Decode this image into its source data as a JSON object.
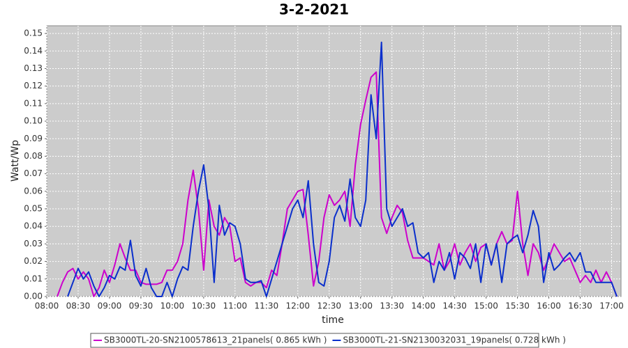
{
  "chart_data": {
    "type": "line",
    "title": "3-2-2021",
    "x_label": "time",
    "y_label": "Watt/Wp",
    "x": [
      "08:10",
      "08:15",
      "08:20",
      "08:25",
      "08:30",
      "08:35",
      "08:40",
      "08:45",
      "08:50",
      "08:55",
      "09:00",
      "09:05",
      "09:10",
      "09:15",
      "09:20",
      "09:25",
      "09:30",
      "09:35",
      "09:40",
      "09:45",
      "09:50",
      "09:55",
      "10:00",
      "10:05",
      "10:10",
      "10:15",
      "10:20",
      "10:25",
      "10:30",
      "10:35",
      "10:40",
      "10:45",
      "10:50",
      "10:55",
      "11:00",
      "11:05",
      "11:10",
      "11:15",
      "11:20",
      "11:25",
      "11:30",
      "11:35",
      "11:40",
      "11:45",
      "11:50",
      "11:55",
      "12:00",
      "12:05",
      "12:10",
      "12:15",
      "12:20",
      "12:25",
      "12:30",
      "12:35",
      "12:40",
      "12:45",
      "12:50",
      "12:55",
      "13:00",
      "13:05",
      "13:10",
      "13:15",
      "13:20",
      "13:25",
      "13:30",
      "13:35",
      "13:40",
      "13:45",
      "13:50",
      "13:55",
      "14:00",
      "14:05",
      "14:10",
      "14:15",
      "14:20",
      "14:25",
      "14:30",
      "14:35",
      "14:40",
      "14:45",
      "14:50",
      "14:55",
      "15:00",
      "15:05",
      "15:10",
      "15:15",
      "15:20",
      "15:25",
      "15:30",
      "15:35",
      "15:40",
      "15:45",
      "15:50",
      "15:55",
      "16:00",
      "16:05",
      "16:10",
      "16:15",
      "16:20",
      "16:25",
      "16:30",
      "16:35",
      "16:40",
      "16:45",
      "16:50",
      "16:55",
      "17:00",
      "17:05"
    ],
    "series": [
      {
        "name": "SB3000TL-20-SN2100578613_21panels( 0.865 kWh )",
        "color": "#cc00cc",
        "values": [
          0.0,
          0.008,
          0.014,
          0.016,
          0.01,
          0.014,
          0.01,
          0.0,
          0.005,
          0.015,
          0.008,
          0.018,
          0.03,
          0.022,
          0.015,
          0.015,
          0.008,
          0.007,
          0.007,
          0.007,
          0.008,
          0.015,
          0.015,
          0.02,
          0.03,
          0.055,
          0.072,
          0.05,
          0.015,
          0.055,
          0.04,
          0.035,
          0.045,
          0.04,
          0.02,
          0.022,
          0.008,
          0.006,
          0.008,
          0.008,
          0.005,
          0.015,
          0.012,
          0.03,
          0.05,
          0.055,
          0.06,
          0.061,
          0.035,
          0.006,
          0.02,
          0.045,
          0.058,
          0.052,
          0.055,
          0.06,
          0.04,
          0.075,
          0.098,
          0.112,
          0.125,
          0.128,
          0.045,
          0.036,
          0.045,
          0.052,
          0.048,
          0.032,
          0.022,
          0.022,
          0.022,
          0.02,
          0.018,
          0.03,
          0.015,
          0.02,
          0.03,
          0.018,
          0.025,
          0.03,
          0.02,
          0.028,
          0.03,
          0.018,
          0.03,
          0.037,
          0.03,
          0.032,
          0.06,
          0.03,
          0.012,
          0.03,
          0.025,
          0.015,
          0.022,
          0.03,
          0.025,
          0.02,
          0.022,
          0.015,
          0.008,
          0.012,
          0.008,
          0.015,
          0.008,
          0.014,
          0.008,
          0.0
        ]
      },
      {
        "name": "SB3000TL-21-SN2130032031_19panels( 0.728 kWh )",
        "color": "#0a2fcc",
        "values": [
          null,
          null,
          0.0,
          0.008,
          0.016,
          0.01,
          0.014,
          0.006,
          0.0,
          0.005,
          0.012,
          0.01,
          0.017,
          0.015,
          0.032,
          0.012,
          0.006,
          0.016,
          0.005,
          0.0,
          0.0,
          0.008,
          0.0,
          0.01,
          0.017,
          0.015,
          0.04,
          0.06,
          0.075,
          0.05,
          0.008,
          0.052,
          0.035,
          0.042,
          0.04,
          0.03,
          0.01,
          0.008,
          0.008,
          0.009,
          0.0,
          0.01,
          0.02,
          0.03,
          0.04,
          0.05,
          0.055,
          0.045,
          0.066,
          0.03,
          0.008,
          0.006,
          0.02,
          0.045,
          0.052,
          0.043,
          0.067,
          0.045,
          0.04,
          0.055,
          0.115,
          0.09,
          0.145,
          0.05,
          0.04,
          0.045,
          0.05,
          0.04,
          0.042,
          0.025,
          0.022,
          0.025,
          0.008,
          0.02,
          0.015,
          0.025,
          0.01,
          0.025,
          0.022,
          0.016,
          0.03,
          0.008,
          0.03,
          0.018,
          0.03,
          0.008,
          0.03,
          0.033,
          0.035,
          0.025,
          0.035,
          0.049,
          0.04,
          0.008,
          0.025,
          0.015,
          0.018,
          0.022,
          0.025,
          0.02,
          0.025,
          0.014,
          0.014,
          0.008,
          0.008,
          0.008,
          0.008,
          0.0
        ]
      }
    ],
    "xlim": [
      "08:00",
      "17:09"
    ],
    "xticks": [
      "08:00",
      "08:30",
      "09:00",
      "09:30",
      "10:00",
      "10:30",
      "11:00",
      "11:30",
      "12:00",
      "12:30",
      "13:00",
      "13:30",
      "14:00",
      "14:30",
      "15:00",
      "15:30",
      "16:00",
      "16:30",
      "17:00"
    ],
    "ylim": [
      0,
      0.1544
    ],
    "yticks": [
      {
        "value": 0,
        "label": "0.00"
      },
      0.01,
      0.02,
      0.03,
      0.04,
      0.05,
      0.06,
      0.07,
      0.08,
      0.09,
      {
        "value": 0.1,
        "label": "0.10"
      },
      0.11,
      0.12,
      0.13,
      0.14,
      0.15
    ],
    "grid": true,
    "legend": "bottom"
  }
}
